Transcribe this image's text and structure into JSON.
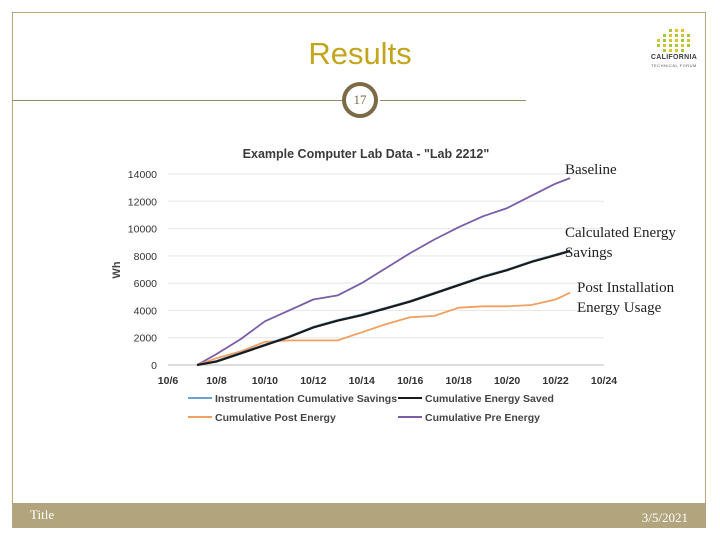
{
  "slide": {
    "title": "Results",
    "page_number": "17",
    "footer_left": "Title",
    "footer_right": "3/5/2021",
    "logo_line1": "CALIFORNIA",
    "logo_line2": "TECHNICAL FORUM"
  },
  "annotations": {
    "baseline": "Baseline",
    "savings_line1": "Calculated Energy",
    "savings_line2": "Savings",
    "post_line1": "Post Installation",
    "post_line2": "Energy Usage"
  },
  "colors": {
    "title": "#c3a41a",
    "footer": "#b2a47c",
    "instrumentation": "#6fa3cf",
    "energy_saved": "#1a1a1a",
    "post": "#f0a060",
    "pre": "#7b5ca8"
  },
  "chart_data": {
    "type": "line",
    "title": "Example Computer Lab Data - \"Lab 2212\"",
    "xlabel": "",
    "ylabel": "Wh",
    "x_ticks": [
      "10/6",
      "10/8",
      "10/10",
      "10/12",
      "10/14",
      "10/16",
      "10/18",
      "10/20",
      "10/22",
      "10/24"
    ],
    "y_ticks": [
      "0",
      "2000",
      "4000",
      "6000",
      "8000",
      "10000",
      "12000",
      "14000"
    ],
    "xlim": [
      0,
      18
    ],
    "ylim": [
      0,
      14000
    ],
    "grid": "horizontal",
    "legend_position": "bottom",
    "series": [
      {
        "name": "Instrumentation Cumulative Savings",
        "color_key": "instrumentation",
        "x": [
          1.2,
          2,
          3,
          4,
          5,
          6,
          7,
          8,
          9,
          10,
          11,
          12,
          13,
          14,
          15,
          16,
          16.6
        ],
        "values": [
          0,
          300,
          900,
          1500,
          2100,
          2800,
          3300,
          3700,
          4200,
          4700,
          5300,
          5900,
          6500,
          7000,
          7600,
          8100,
          8400
        ]
      },
      {
        "name": "Cumulative Energy Saved",
        "color_key": "energy_saved",
        "x": [
          1.2,
          2,
          3,
          4,
          5,
          6,
          7,
          8,
          9,
          10,
          11,
          12,
          13,
          14,
          15,
          16,
          16.6
        ],
        "values": [
          0,
          250,
          850,
          1450,
          2050,
          2750,
          3250,
          3650,
          4150,
          4650,
          5250,
          5850,
          6450,
          6950,
          7550,
          8050,
          8350
        ]
      },
      {
        "name": "Cumulative Post Energy",
        "color_key": "post",
        "x": [
          1.2,
          2,
          3,
          4,
          5,
          6,
          7,
          8,
          9,
          10,
          11,
          12,
          13,
          14,
          15,
          16,
          16.6
        ],
        "values": [
          0,
          500,
          1000,
          1700,
          1800,
          1800,
          1800,
          2400,
          3000,
          3500,
          3600,
          4200,
          4300,
          4300,
          4400,
          4800,
          5300
        ]
      },
      {
        "name": "Cumulative Pre Energy",
        "color_key": "pre",
        "x": [
          1.2,
          2,
          3,
          4,
          5,
          6,
          7,
          8,
          9,
          10,
          11,
          12,
          13,
          14,
          15,
          16,
          16.6
        ],
        "values": [
          0,
          800,
          1900,
          3200,
          4000,
          4800,
          5100,
          6000,
          7100,
          8200,
          9200,
          10100,
          10900,
          11500,
          12400,
          13300,
          13700
        ]
      }
    ]
  }
}
